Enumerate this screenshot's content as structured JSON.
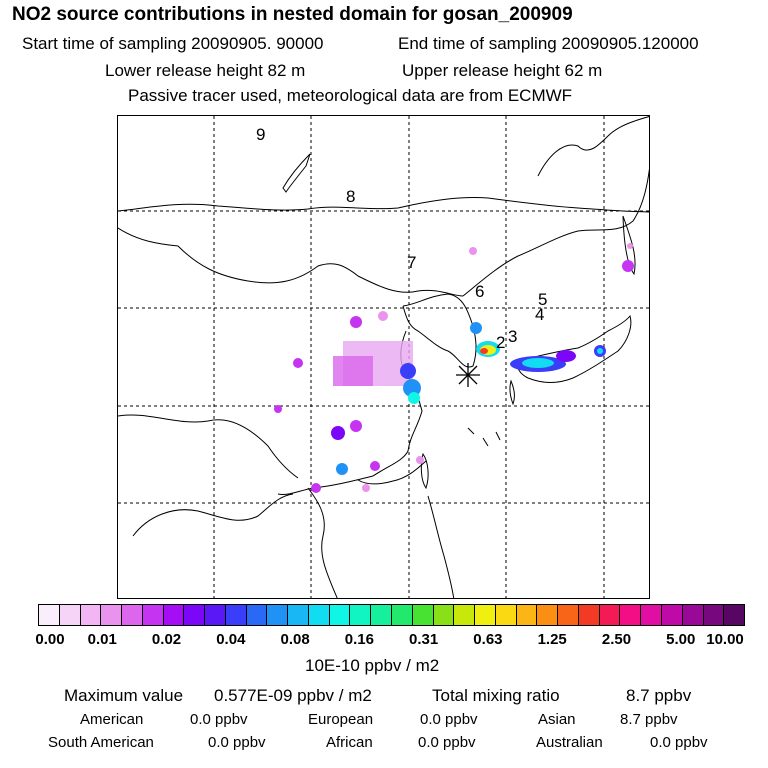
{
  "header": {
    "title": "NO2 source contributions in nested domain for gosan_200909",
    "start_label": "Start time of sampling 20090905. 90000",
    "end_label": "End time of sampling 20090905.120000",
    "lower_label": "Lower release height   82 m",
    "upper_label": "Upper release height   62 m",
    "note": "Passive tracer used, meteorological data are from ECMWF"
  },
  "map": {
    "trajectory_labels": [
      "9",
      "8",
      "7",
      "6",
      "5",
      "4",
      "3",
      "2"
    ],
    "receptor_marker": "asterisk-icon"
  },
  "colorbar": {
    "colors": [
      "#fbeefc",
      "#f6d4f8",
      "#f1b6f3",
      "#ea93ee",
      "#dc66ec",
      "#c534f0",
      "#a50ef5",
      "#7c06f8",
      "#5a18f6",
      "#3a3ef8",
      "#2a69f6",
      "#2192f5",
      "#19b8f4",
      "#12dcf2",
      "#0ff5e6",
      "#11f5c3",
      "#16f09c",
      "#22e86d",
      "#48e232",
      "#8ae018",
      "#c8e80c",
      "#f0f010",
      "#fad812",
      "#fbb514",
      "#fa8f14",
      "#f86418",
      "#f33a25",
      "#f41a56",
      "#f30e86",
      "#e00ea2",
      "#be0aa6",
      "#9a0898",
      "#78087e",
      "#580664"
    ],
    "ticks": [
      "0.00",
      "0.01",
      "0.02",
      "0.04",
      "0.08",
      "0.16",
      "0.31",
      "0.63",
      "1.25",
      "2.50",
      "5.00",
      "10.00"
    ],
    "units": "10E-10 ppbv / m2"
  },
  "stats": {
    "max_label": "Maximum value",
    "max_value": "0.577E-09 ppbv / m2",
    "total_label": "Total mixing ratio",
    "total_value": "8.7 ppbv",
    "regions": [
      {
        "name": "American",
        "value": "0.0 ppbv"
      },
      {
        "name": "European",
        "value": "0.0 ppbv"
      },
      {
        "name": "Asian",
        "value": "8.7 ppbv"
      },
      {
        "name": "South American",
        "value": "0.0 ppbv"
      },
      {
        "name": "African",
        "value": "0.0 ppbv"
      },
      {
        "name": "Australian",
        "value": "0.0 ppbv"
      }
    ]
  }
}
